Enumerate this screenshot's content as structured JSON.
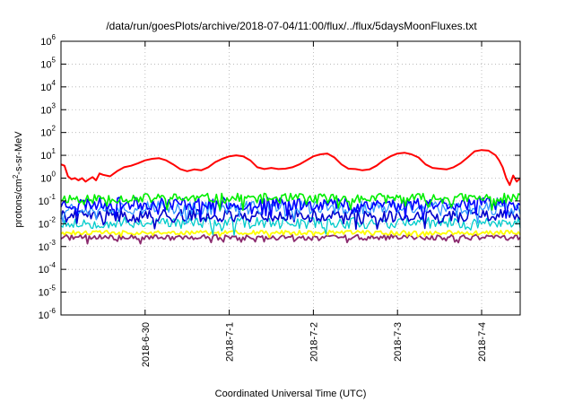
{
  "chart_data": {
    "type": "line",
    "title": "/data/run/goesPlots/archive/2018-07-04/11:00/flux/../flux/5daysMoonFluxes.txt",
    "xlabel": "Coordinated Universal Time (UTC)",
    "ylabel": "protons/cm2-s-sr-MeV",
    "ylabel_parts": {
      "pre": "protons/cm",
      "sup": "2",
      "post": "-s-sr-MeV"
    },
    "y_scale": "log",
    "ylim_exp": [
      -6,
      6
    ],
    "y_tick_labels": [
      {
        "base": "10",
        "exp": "-6"
      },
      {
        "base": "10",
        "exp": "-5"
      },
      {
        "base": "10",
        "exp": "-4"
      },
      {
        "base": "10",
        "exp": "-3"
      },
      {
        "base": "10",
        "exp": "-2"
      },
      {
        "base": "10",
        "exp": "-1"
      },
      {
        "base": "10",
        "exp": "0"
      },
      {
        "base": "10",
        "exp": "1"
      },
      {
        "base": "10",
        "exp": "2"
      },
      {
        "base": "10",
        "exp": "3"
      },
      {
        "base": "10",
        "exp": "4"
      },
      {
        "base": "10",
        "exp": "5"
      },
      {
        "base": "10",
        "exp": "6"
      }
    ],
    "xlim": [
      "2018-06-29T00:00",
      "2018-07-04T11:00"
    ],
    "x_tick_dates": [
      "2018-06-30",
      "2018-07-01",
      "2018-07-02",
      "2018-07-03",
      "2018-07-04"
    ],
    "x_tick_labels": [
      "2018-6-30",
      "2018-7-1",
      "2018-7-2",
      "2018-7-3",
      "2018-7-4"
    ],
    "grid": true,
    "legend": "none",
    "series": [
      {
        "color": "#ff0000",
        "width": 2.0,
        "values": [
          [
            "2018-06-29T00:00",
            4.0
          ],
          [
            "2018-06-29T01:00",
            3.5
          ],
          [
            "2018-06-29T02:00",
            1.2
          ],
          [
            "2018-06-29T03:00",
            0.9
          ],
          [
            "2018-06-29T04:00",
            1.0
          ],
          [
            "2018-06-29T05:00",
            0.8
          ],
          [
            "2018-06-29T06:00",
            1.0
          ],
          [
            "2018-06-29T07:00",
            0.7
          ],
          [
            "2018-06-29T08:00",
            0.9
          ],
          [
            "2018-06-29T09:00",
            1.1
          ],
          [
            "2018-06-29T10:00",
            0.8
          ],
          [
            "2018-06-29T11:00",
            1.6
          ],
          [
            "2018-06-29T12:00",
            1.4
          ],
          [
            "2018-06-29T14:00",
            1.2
          ],
          [
            "2018-06-29T16:00",
            2.0
          ],
          [
            "2018-06-29T18:00",
            3.0
          ],
          [
            "2018-06-29T20:00",
            3.5
          ],
          [
            "2018-06-29T22:00",
            4.5
          ],
          [
            "2018-06-30T00:00",
            6.0
          ],
          [
            "2018-06-30T02:00",
            7.0
          ],
          [
            "2018-06-30T04:00",
            7.5
          ],
          [
            "2018-06-30T06:00",
            6.0
          ],
          [
            "2018-06-30T08:00",
            4.0
          ],
          [
            "2018-06-30T10:00",
            2.5
          ],
          [
            "2018-06-30T12:00",
            2.0
          ],
          [
            "2018-06-30T14:00",
            2.4
          ],
          [
            "2018-06-30T16:00",
            2.2
          ],
          [
            "2018-06-30T18:00",
            3.0
          ],
          [
            "2018-06-30T20:00",
            5.0
          ],
          [
            "2018-06-30T22:00",
            7.0
          ],
          [
            "2018-07-01T00:00",
            9.0
          ],
          [
            "2018-07-01T02:00",
            10.0
          ],
          [
            "2018-07-01T04:00",
            9.0
          ],
          [
            "2018-07-01T06:00",
            6.0
          ],
          [
            "2018-07-01T08:00",
            3.0
          ],
          [
            "2018-07-01T10:00",
            2.5
          ],
          [
            "2018-07-01T12:00",
            2.8
          ],
          [
            "2018-07-01T14:00",
            2.5
          ],
          [
            "2018-07-01T16:00",
            2.6
          ],
          [
            "2018-07-01T18:00",
            3.0
          ],
          [
            "2018-07-01T20:00",
            4.0
          ],
          [
            "2018-07-01T22:00",
            6.0
          ],
          [
            "2018-07-02T00:00",
            9.0
          ],
          [
            "2018-07-02T02:00",
            11.0
          ],
          [
            "2018-07-02T04:00",
            12.0
          ],
          [
            "2018-07-02T06:00",
            8.0
          ],
          [
            "2018-07-02T08:00",
            4.0
          ],
          [
            "2018-07-02T10:00",
            2.6
          ],
          [
            "2018-07-02T12:00",
            2.5
          ],
          [
            "2018-07-02T14:00",
            2.2
          ],
          [
            "2018-07-02T16:00",
            2.4
          ],
          [
            "2018-07-02T18:00",
            3.5
          ],
          [
            "2018-07-02T20:00",
            6.0
          ],
          [
            "2018-07-02T22:00",
            9.0
          ],
          [
            "2018-07-03T00:00",
            12.0
          ],
          [
            "2018-07-03T02:00",
            13.0
          ],
          [
            "2018-07-03T04:00",
            11.0
          ],
          [
            "2018-07-03T06:00",
            8.0
          ],
          [
            "2018-07-03T08:00",
            4.0
          ],
          [
            "2018-07-03T10:00",
            2.8
          ],
          [
            "2018-07-03T12:00",
            2.6
          ],
          [
            "2018-07-03T14:00",
            2.4
          ],
          [
            "2018-07-03T16:00",
            3.0
          ],
          [
            "2018-07-03T18:00",
            4.5
          ],
          [
            "2018-07-03T20:00",
            8.0
          ],
          [
            "2018-07-03T22:00",
            15.0
          ],
          [
            "2018-07-04T00:00",
            17.0
          ],
          [
            "2018-07-04T02:00",
            16.0
          ],
          [
            "2018-07-04T04:00",
            10.0
          ],
          [
            "2018-07-04T05:00",
            6.0
          ],
          [
            "2018-07-04T06:00",
            3.0
          ],
          [
            "2018-07-04T07:00",
            1.0
          ],
          [
            "2018-07-04T08:00",
            0.5
          ],
          [
            "2018-07-04T09:00",
            1.3
          ],
          [
            "2018-07-04T10:00",
            0.7
          ],
          [
            "2018-07-04T11:00",
            1.0
          ]
        ]
      },
      {
        "color": "#00ee00",
        "width": 1.6,
        "base": 0.13,
        "amp": 0.22,
        "seed": 11
      },
      {
        "color": "#0000ff",
        "width": 1.6,
        "base": 0.075,
        "amp": 0.28,
        "seed": 23
      },
      {
        "color": "#3399ff",
        "width": 1.3,
        "base": 0.05,
        "amp": 0.3,
        "seed": 37
      },
      {
        "color": "#0000cc",
        "width": 1.6,
        "base": 0.022,
        "amp": 0.28,
        "seed": 41
      },
      {
        "color": "#00cccc",
        "width": 1.3,
        "base": 0.011,
        "amp": 0.25,
        "seed": 53
      },
      {
        "color": "#ffff00",
        "width": 1.8,
        "base": 0.004,
        "amp": 0.1,
        "seed": 61
      },
      {
        "color": "#8b2a6e",
        "width": 1.8,
        "base": 0.0025,
        "amp": 0.12,
        "seed": 71
      }
    ]
  }
}
